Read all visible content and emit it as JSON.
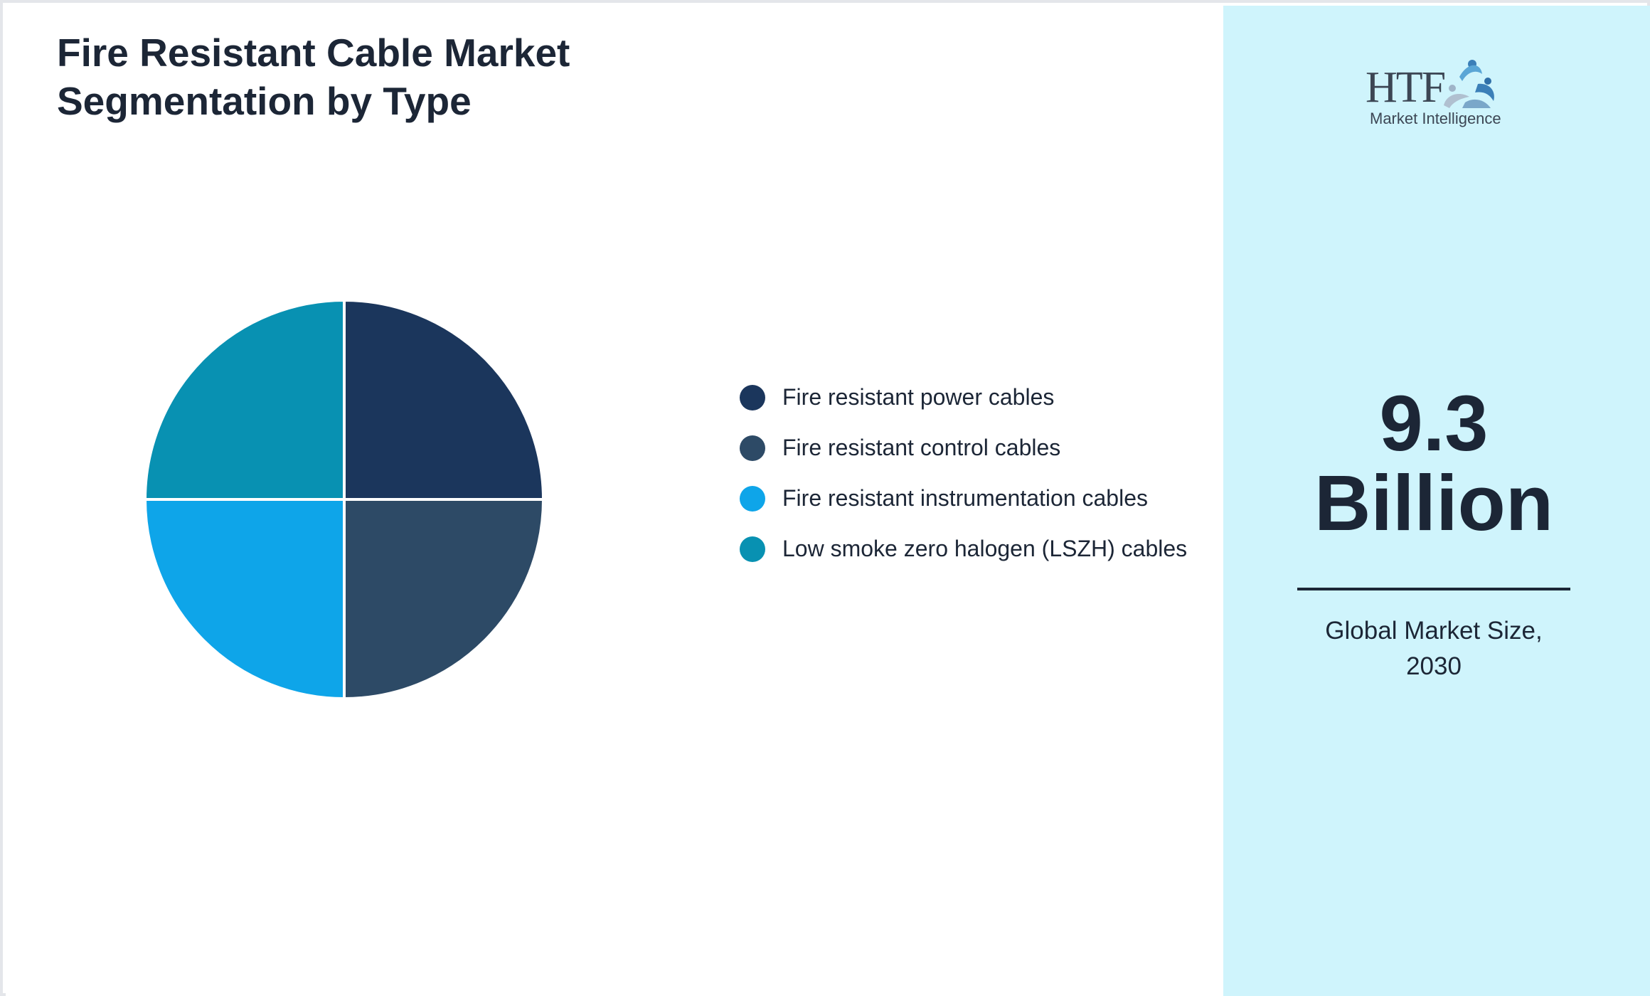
{
  "title": {
    "line1": "Fire Resistant Cable Market",
    "line2": "Segmentation by Type"
  },
  "chart_data": {
    "type": "pie",
    "categories": [
      "Fire resistant power cables",
      "Fire resistant control cables",
      "Fire resistant instrumentation cables",
      "Low smoke zero halogen (LSZH) cables"
    ],
    "values": [
      25,
      25,
      25,
      25
    ],
    "colors": [
      "#1b365c",
      "#2d4a66",
      "#0ea5e9",
      "#0891b2"
    ],
    "start_angle_deg": -90,
    "direction": "clockwise",
    "legend_position": "right",
    "legend": [
      {
        "label": "Fire resistant power cables",
        "color": "#1b365c"
      },
      {
        "label": "Fire resistant control cables",
        "color": "#2d4a66"
      },
      {
        "label": "Fire resistant instrumentation cables",
        "color": "#0ea5e9"
      },
      {
        "label": "Low smoke zero halogen (LSZH) cables",
        "color": "#0891b2"
      }
    ]
  },
  "summary": {
    "value_line1": "9.3",
    "value_line2": "Billion",
    "caption_line1": "Global Market Size,",
    "caption_line2": "2030"
  },
  "logo": {
    "mark": "HTF",
    "tagline": "Market Intelligence",
    "icon": "htf-figures-logo-icon"
  },
  "colors": {
    "side_panel": "#cff4fc",
    "text": "#1c2636"
  }
}
